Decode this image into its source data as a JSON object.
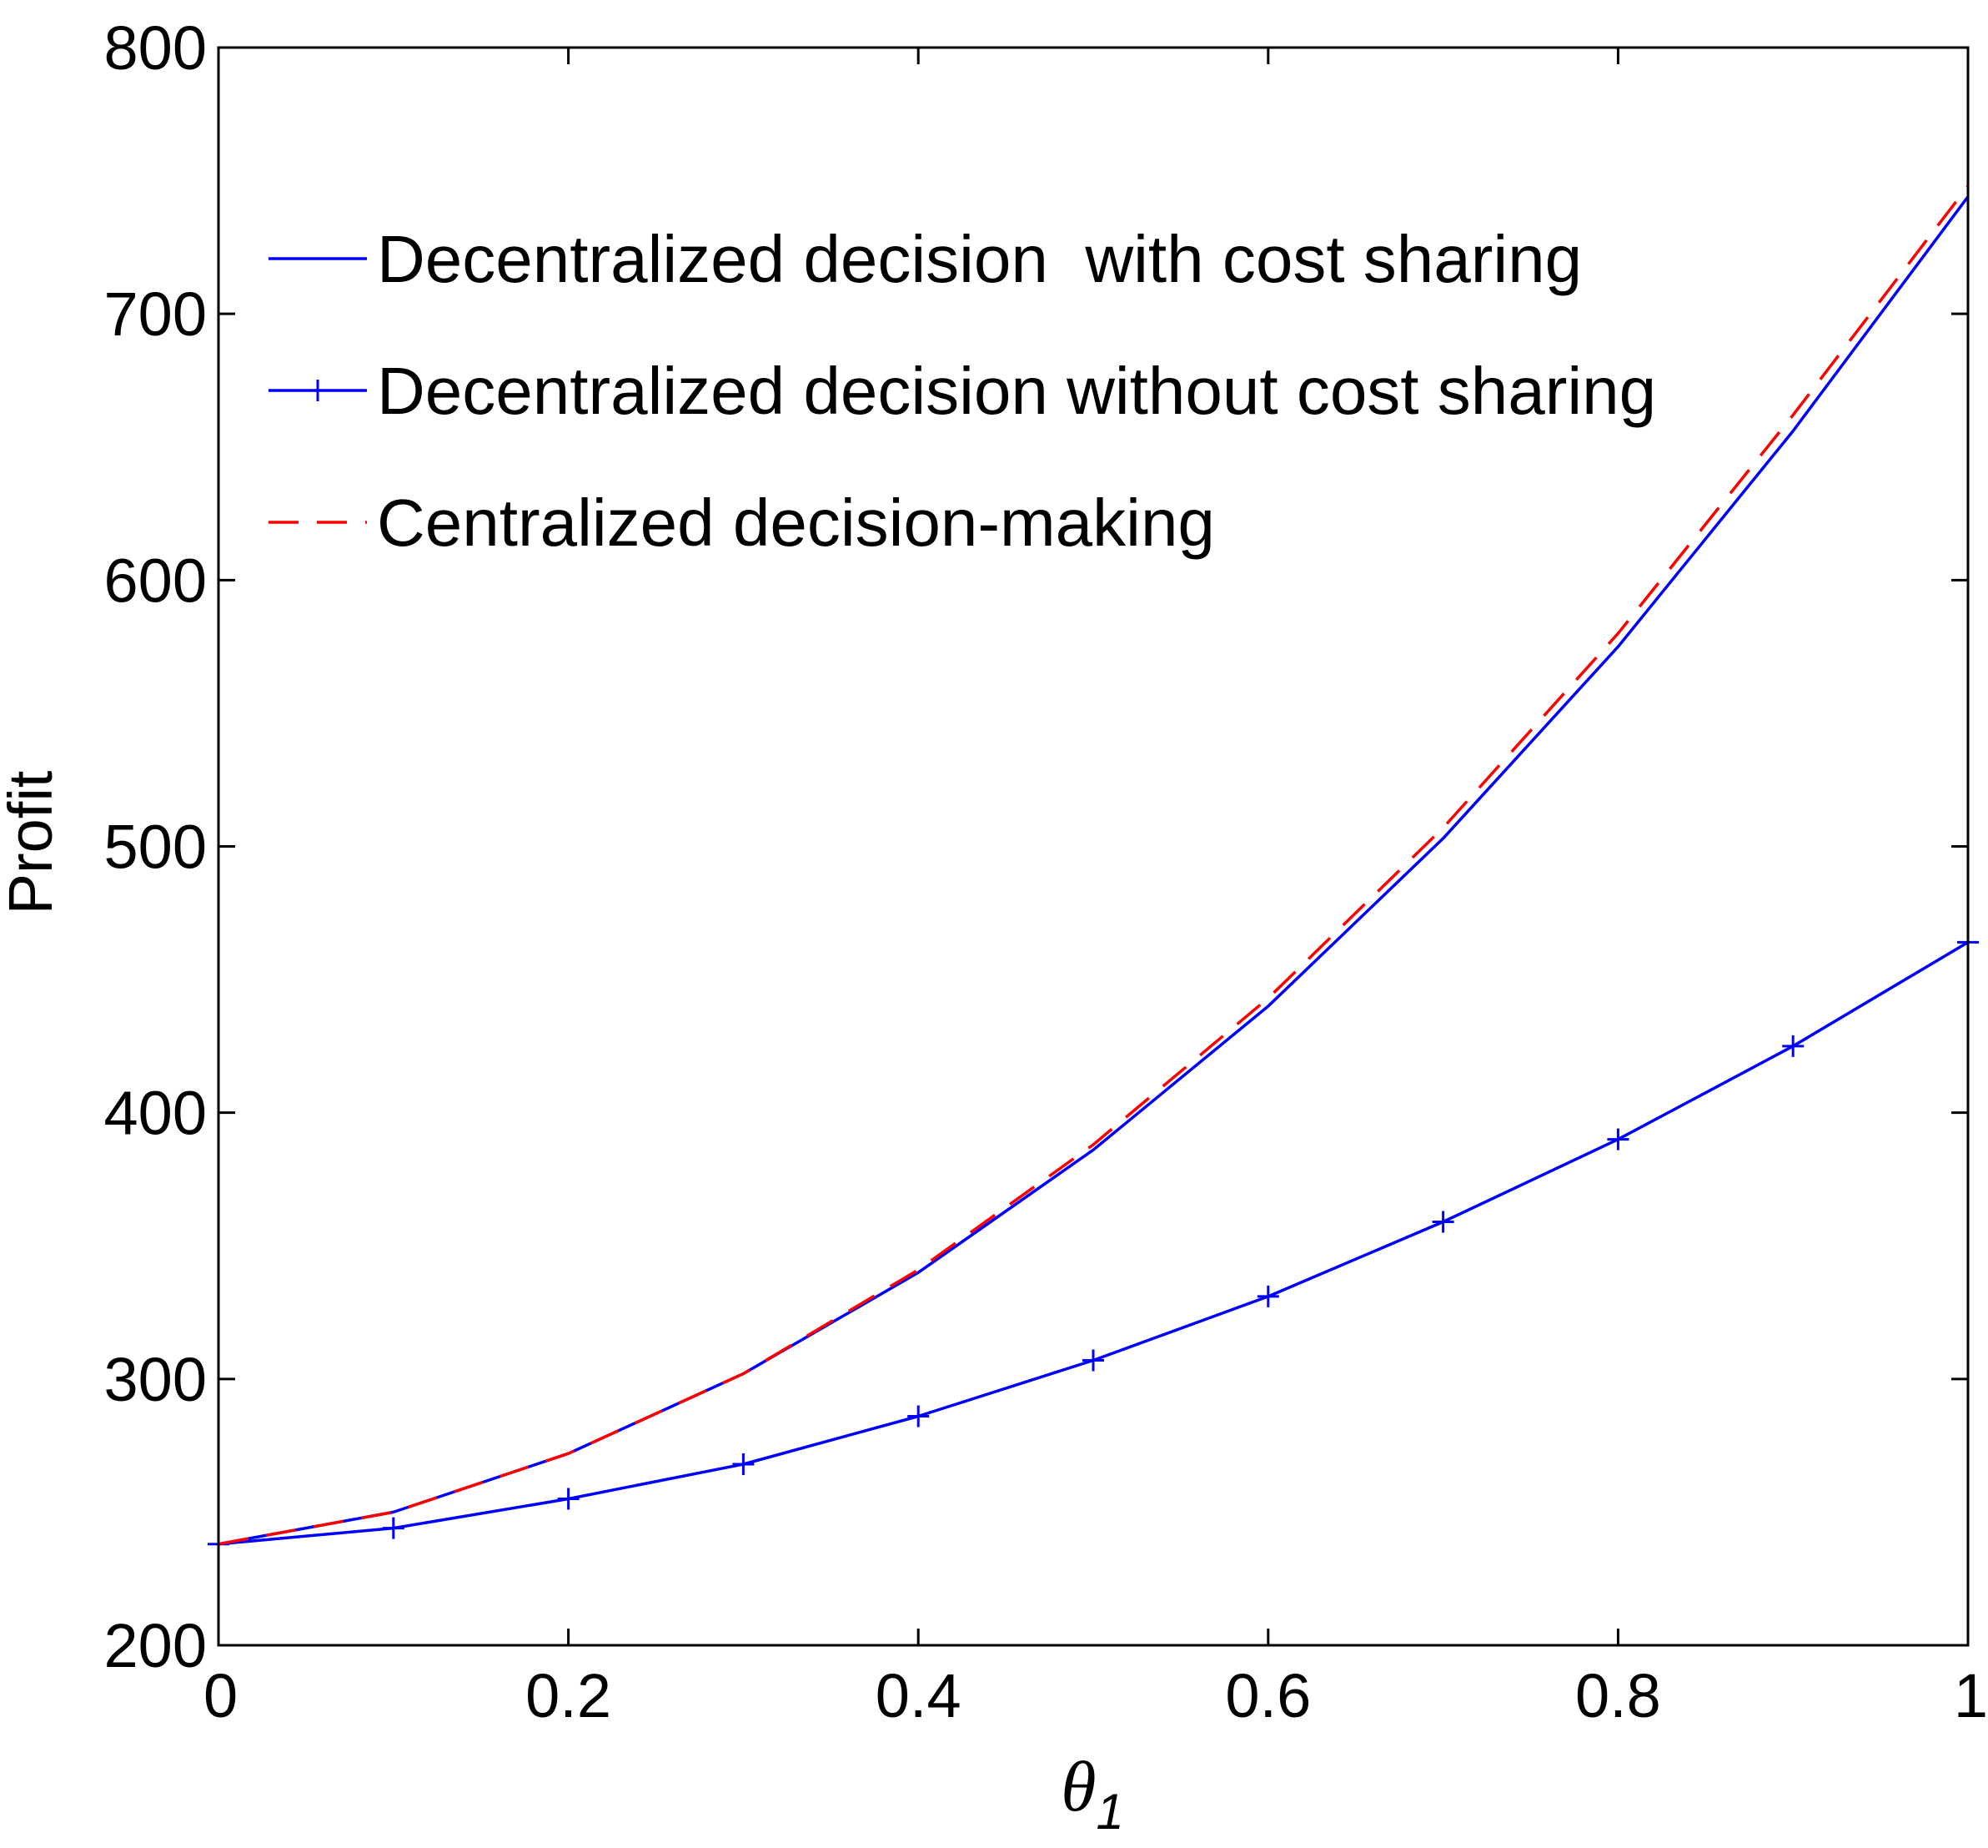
{
  "chart_data": {
    "type": "line",
    "title": "",
    "xlabel": {
      "symbol": "θ",
      "subscript": "1"
    },
    "ylabel": "Profit",
    "xlim": [
      0,
      1
    ],
    "ylim": [
      200,
      800
    ],
    "xticks": [
      0,
      0.2,
      0.4,
      0.6,
      0.8,
      1
    ],
    "xtick_labels": [
      "0",
      "0.2",
      "0.4",
      "0.6",
      "0.8",
      "1"
    ],
    "yticks": [
      200,
      300,
      400,
      500,
      600,
      700,
      800
    ],
    "ytick_labels": [
      "200",
      "300",
      "400",
      "500",
      "600",
      "700",
      "800"
    ],
    "grid": false,
    "legend_position": "top-left",
    "x": [
      0,
      0.1,
      0.2,
      0.3,
      0.4,
      0.5,
      0.6,
      0.7,
      0.8,
      0.9,
      1.0
    ],
    "series": [
      {
        "name": "Decentralized decision  with cost sharing",
        "color": "#0000ff",
        "style": "solid",
        "marker": "none",
        "values": [
          238,
          250,
          272,
          302,
          340,
          386,
          440,
          503,
          575,
          656,
          744
        ]
      },
      {
        "name": "Decentralized decision without cost sharing",
        "color": "#0000ff",
        "style": "solid",
        "marker": "plus",
        "values": [
          238,
          244,
          255,
          268,
          286,
          307,
          331,
          359,
          390,
          425,
          464
        ]
      },
      {
        "name": "Centralized decision-making",
        "color": "#ff0000",
        "style": "dashed",
        "marker": "none",
        "values": [
          238,
          250,
          272,
          302,
          341,
          388,
          443,
          507,
          580,
          662,
          748
        ]
      }
    ]
  }
}
